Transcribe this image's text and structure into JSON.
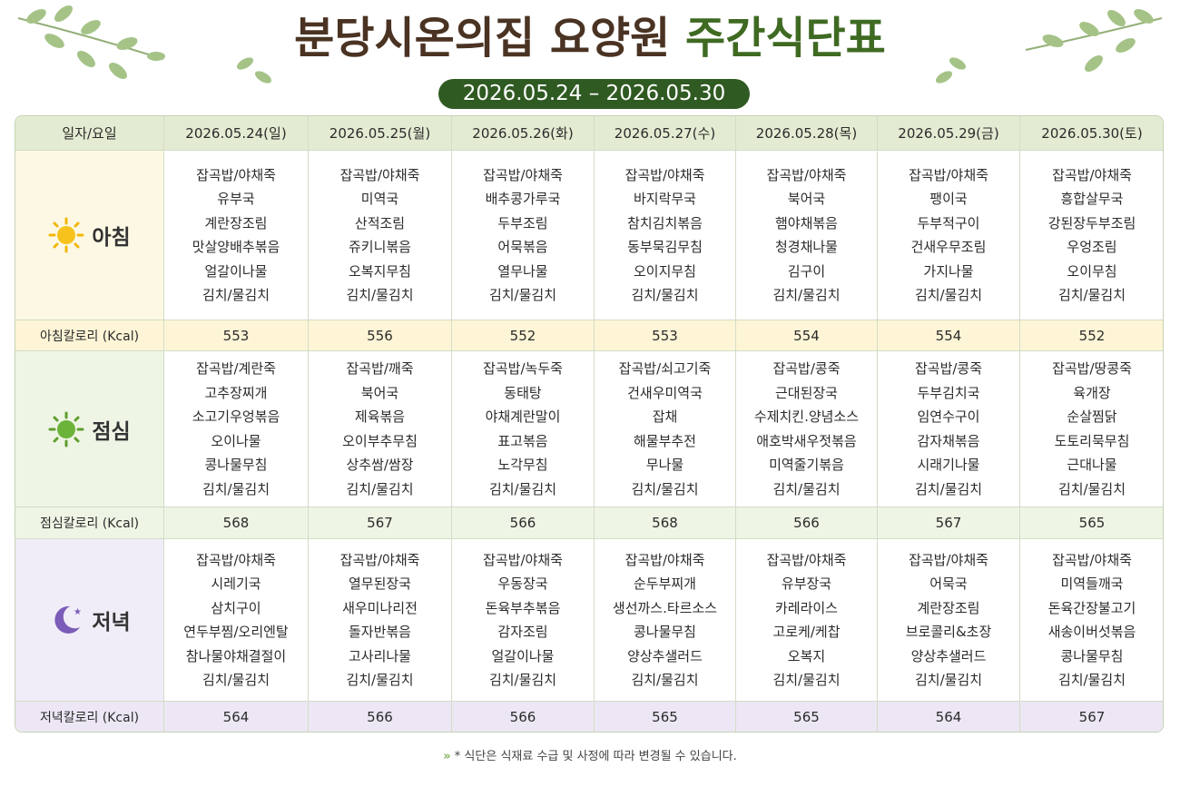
{
  "header": {
    "title_main": "분당시온의집 요양원",
    "title_accent": "주간식단표",
    "period": "2026.05.24 – 2026.05.30"
  },
  "table": {
    "corner": "일자/요일",
    "dates": [
      "2026.05.24(일)",
      "2026.05.25(월)",
      "2026.05.26(화)",
      "2026.05.27(수)",
      "2026.05.28(목)",
      "2026.05.29(금)",
      "2026.05.30(토)"
    ],
    "meals": [
      {
        "label": "아침",
        "calorie_label": "아침칼로리 (Kcal)",
        "days": [
          [
            "잡곡밥/야채죽",
            "유부국",
            "계란장조림",
            "맛살양배추볶음",
            "얼갈이나물",
            "김치/물김치"
          ],
          [
            "잡곡밥/야채죽",
            "미역국",
            "산적조림",
            "쥬키니볶음",
            "오복지무침",
            "김치/물김치"
          ],
          [
            "잡곡밥/야채죽",
            "배추콩가루국",
            "두부조림",
            "어묵볶음",
            "열무나물",
            "김치/물김치"
          ],
          [
            "잡곡밥/야채죽",
            "바지락무국",
            "참치김치볶음",
            "동부묵김무침",
            "오이지무침",
            "김치/물김치"
          ],
          [
            "잡곡밥/야채죽",
            "북어국",
            "햄야채볶음",
            "청경채나물",
            "김구이",
            "김치/물김치"
          ],
          [
            "잡곡밥/야채죽",
            "팽이국",
            "두부적구이",
            "건새우무조림",
            "가지나물",
            "김치/물김치"
          ],
          [
            "잡곡밥/야채죽",
            "흥합살무국",
            "강된장두부조림",
            "우엉조림",
            "오이무침",
            "김치/물김치"
          ]
        ],
        "calories": [
          553,
          556,
          552,
          553,
          554,
          554,
          552
        ]
      },
      {
        "label": "점심",
        "calorie_label": "점심칼로리 (Kcal)",
        "days": [
          [
            "잡곡밥/계란죽",
            "고추장찌개",
            "소고기우엉볶음",
            "오이나물",
            "콩나물무침",
            "김치/물김치"
          ],
          [
            "잡곡밥/깨죽",
            "북어국",
            "제육볶음",
            "오이부추무침",
            "상추쌈/쌈장",
            "김치/물김치"
          ],
          [
            "잡곡밥/녹두죽",
            "동태탕",
            "야채계란말이",
            "표고볶음",
            "노각무침",
            "김치/물김치"
          ],
          [
            "잡곡밥/쇠고기죽",
            "건새우미역국",
            "잡채",
            "해물부추전",
            "무나물",
            "김치/물김치"
          ],
          [
            "잡곡밥/콩죽",
            "근대된장국",
            "수제치킨.양념소스",
            "애호박새우젓볶음",
            "미역줄기볶음",
            "김치/물김치"
          ],
          [
            "잡곡밥/콩죽",
            "두부김치국",
            "임연수구이",
            "감자채볶음",
            "시래기나물",
            "김치/물김치"
          ],
          [
            "잡곡밥/땅콩죽",
            "육개장",
            "순살찜닭",
            "도토리묵무침",
            "근대나물",
            "김치/물김치"
          ]
        ],
        "calories": [
          568,
          567,
          566,
          568,
          566,
          567,
          565
        ]
      },
      {
        "label": "저녁",
        "calorie_label": "저녁칼로리 (Kcal)",
        "days": [
          [
            "잡곡밥/야채죽",
            "시레기국",
            "삼치구이",
            "연두부찜/오리엔탈",
            "참나물야채결절이",
            "김치/물김치"
          ],
          [
            "잡곡밥/야채죽",
            "열무된장국",
            "새우미나리전",
            "돌자반볶음",
            "고사리나물",
            "김치/물김치"
          ],
          [
            "잡곡밥/야채죽",
            "우동장국",
            "돈육부추볶음",
            "감자조림",
            "얼갈이나물",
            "김치/물김치"
          ],
          [
            "잡곡밥/야채죽",
            "순두부찌개",
            "생선까스.타르소스",
            "콩나물무침",
            "양상추샐러드",
            "김치/물김치"
          ],
          [
            "잡곡밥/야채죽",
            "유부장국",
            "카레라이스",
            "고로케/케찹",
            "오복지",
            "김치/물김치"
          ],
          [
            "잡곡밥/야채죽",
            "어묵국",
            "계란장조림",
            "브로콜리&초장",
            "양상추샐러드",
            "김치/물김치"
          ],
          [
            "잡곡밥/야채죽",
            "미역들깨국",
            "돈육간장불고기",
            "새송이버섯볶음",
            "콩나물무침",
            "김치/물김치"
          ]
        ],
        "calories": [
          564,
          566,
          566,
          565,
          565,
          564,
          567
        ]
      }
    ]
  },
  "footer": {
    "note": "* 식단은 식재료 수급 및 사정에 따라 변경될 수 있습니다."
  }
}
